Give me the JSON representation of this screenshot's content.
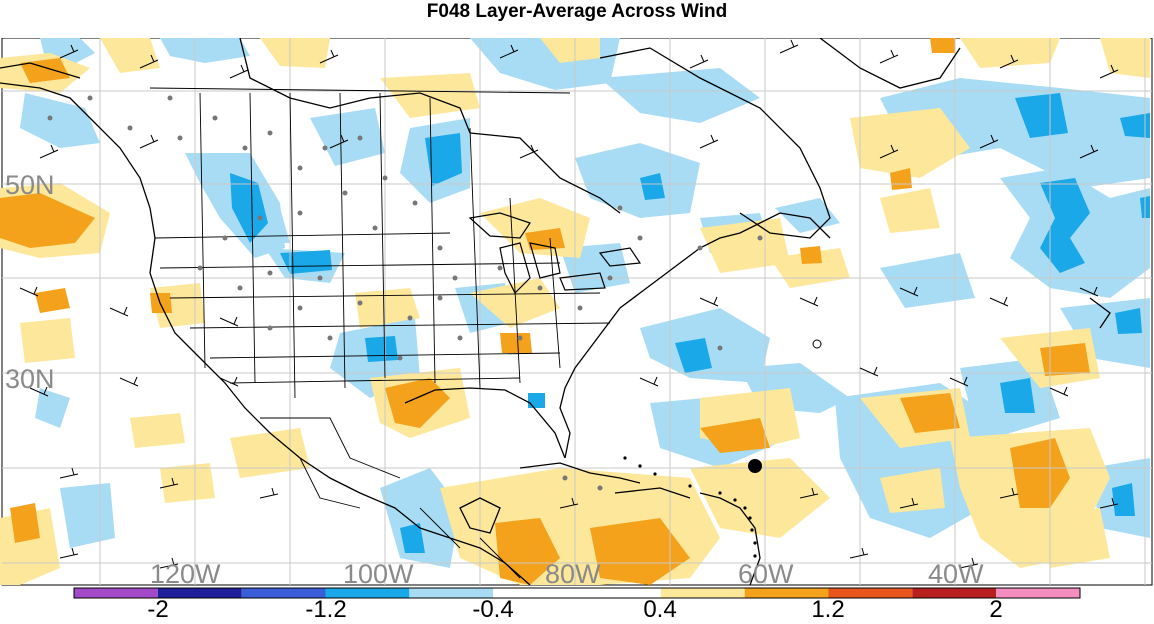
{
  "title": "F048 Layer-Average Across Wind",
  "map": {
    "lat_labels": [
      "50N",
      "30N"
    ],
    "lon_labels": [
      "120W",
      "100W",
      "80W",
      "60W",
      "40W"
    ],
    "label_color": "#8a8a8a"
  },
  "colorbar": {
    "labels": [
      "-2",
      "-1.2",
      "-0.4",
      "0.4",
      "1.2",
      "2"
    ],
    "colors": [
      "#a24ac9",
      "#1f1f9a",
      "#3a5ed8",
      "#1aa8e8",
      "#a8dcf5",
      "#ffffff",
      "#ffffff",
      "#fde79a",
      "#f4a21c",
      "#e8561e",
      "#b82020",
      "#f48ec0"
    ]
  },
  "colors": {
    "light_blue": "#a8dcf5",
    "mid_blue": "#1aa8e8",
    "light_yellow": "#fde79a",
    "orange": "#f4a21c",
    "grid": "#c8c8c8"
  }
}
